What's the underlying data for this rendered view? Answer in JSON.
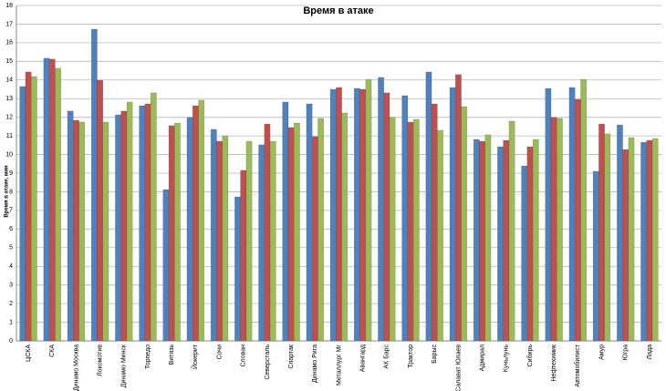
{
  "chart_data": {
    "type": "bar",
    "title": "Время в атаке",
    "y_label": "Время в атаке, мин",
    "categories": [
      "ЦСКА",
      "СКА",
      "Динамо Москва",
      "Локомотив",
      "Динамо Минск",
      "Торпедо",
      "Витязь",
      "Йокерит",
      "Сочи",
      "Слован",
      "Северсталь",
      "Спартак",
      "Динамо Рига",
      "Металлург Мг",
      "Авангард",
      "АК Барс",
      "Трактор",
      "Барыс",
      "Салават Юлаев",
      "Адмирал",
      "Куньлунь",
      "Сибирь",
      "Нефтехимик",
      "Автомобилист",
      "Амур",
      "Югра",
      "Лада"
    ],
    "series": [
      {
        "color": "#4f81bd",
        "values": [
          13.65,
          15.17,
          12.33,
          16.73,
          12.13,
          12.62,
          8.12,
          11.99,
          11.35,
          7.73,
          10.52,
          12.82,
          12.72,
          13.5,
          13.55,
          14.14,
          13.16,
          14.43,
          13.6,
          10.81,
          10.42,
          9.39,
          13.55,
          13.6,
          9.1,
          11.59,
          10.66
        ]
      },
      {
        "color": "#c0504d",
        "values": [
          14.43,
          15.12,
          11.84,
          13.99,
          12.33,
          12.72,
          11.55,
          12.62,
          10.71,
          9.15,
          11.64,
          11.45,
          10.96,
          13.6,
          13.5,
          13.31,
          11.74,
          12.72,
          14.29,
          10.71,
          10.76,
          10.42,
          11.99,
          12.96,
          11.64,
          10.27,
          10.76
        ]
      },
      {
        "color": "#9bbb59",
        "values": [
          14.19,
          14.63,
          11.74,
          11.74,
          12.82,
          13.31,
          11.69,
          12.92,
          11.0,
          10.71,
          10.71,
          11.69,
          11.94,
          12.23,
          14.04,
          11.99,
          11.89,
          11.3,
          12.57,
          11.06,
          11.79,
          10.81,
          11.94,
          14.04,
          11.11,
          10.91,
          10.86
        ]
      }
    ],
    "ylim": [
      0,
      18
    ],
    "yticks": [
      0,
      1,
      2,
      3,
      4,
      5,
      6,
      7,
      8,
      9,
      10,
      11,
      12,
      13,
      14,
      15,
      16,
      17,
      18
    ],
    "grid": true
  }
}
